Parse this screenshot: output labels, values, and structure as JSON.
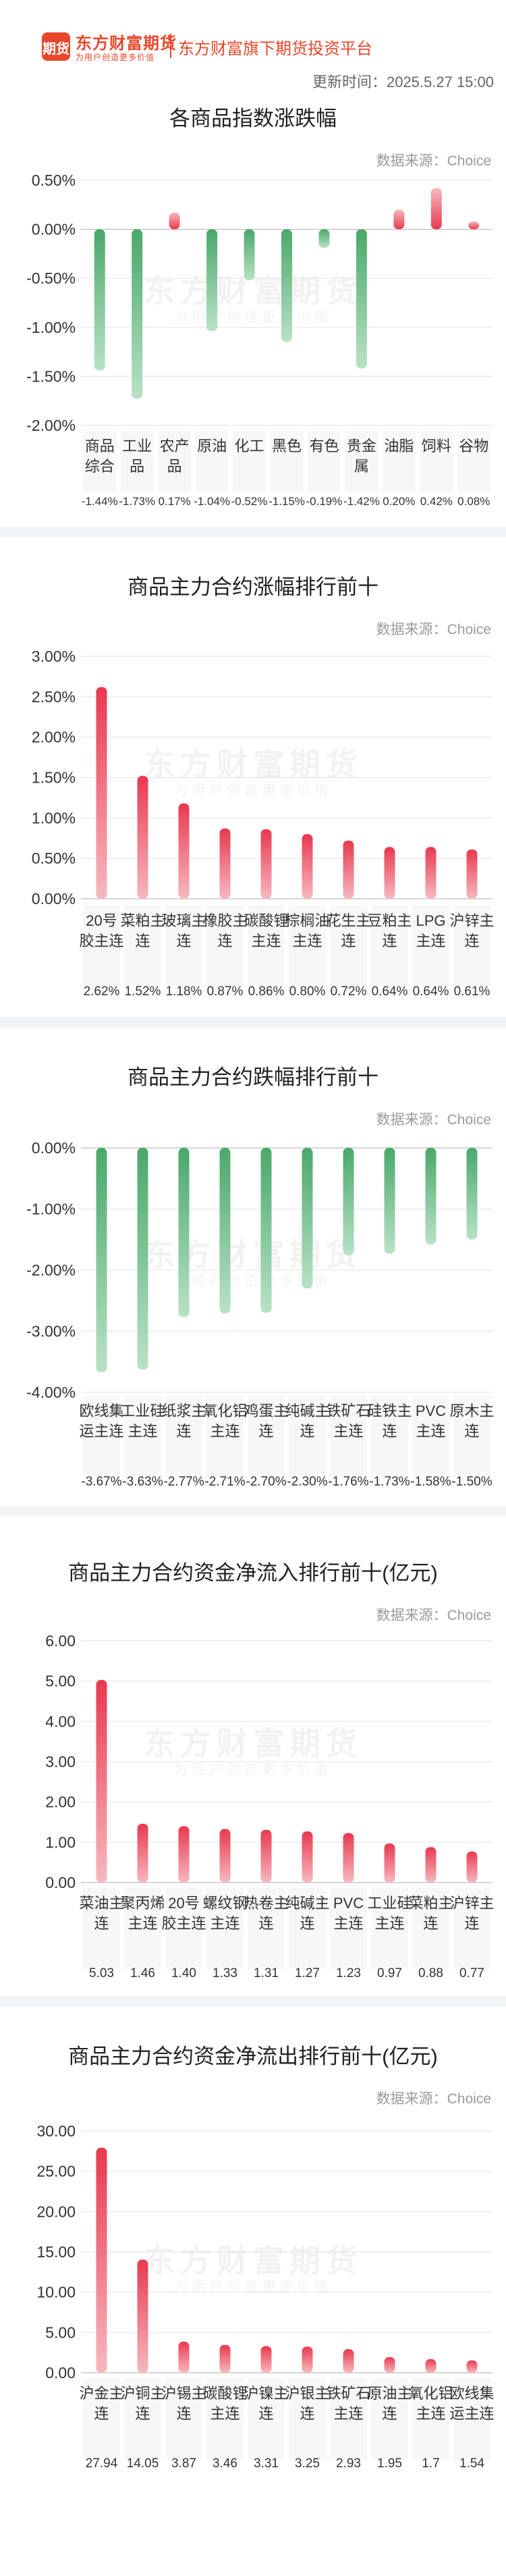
{
  "header": {
    "logo_glyph": "期货",
    "brand": "东方财富期货",
    "brand_sub": "为用户创造更多价值",
    "platform": "东方财富旗下期货投资平台",
    "update_time": "更新时间：2025.5.27 15:00"
  },
  "source_text": "数据来源：Choice",
  "watermark": {
    "main": "东方财富期货",
    "sub": "为用户创造更多价值"
  },
  "colors": {
    "rise": "#e8394f",
    "fall": "#45a86a",
    "grid": "#e6e6e6",
    "label_bg": "#f7f7f7"
  },
  "charts": [
    {
      "title": "各商品指数涨跌幅",
      "unit": "%",
      "decimals": 2,
      "ylim": [
        -2.0,
        0.5
      ],
      "ticks": [
        0.5,
        0.0,
        -0.5,
        -1.0,
        -1.5,
        -2.0
      ],
      "categories": [
        "商品综合",
        "工业品",
        "农产品",
        "原油",
        "化工",
        "黑色",
        "有色",
        "贵金属",
        "油脂",
        "饲料",
        "谷物"
      ],
      "values": [
        -1.44,
        -1.73,
        0.17,
        -1.04,
        -0.52,
        -1.15,
        -0.19,
        -1.42,
        0.2,
        0.42,
        0.08
      ],
      "value_labels": [
        "-1.44%",
        "-1.73%",
        "0.17%",
        "-1.04%",
        "-0.52%",
        "-1.15%",
        "-0.19%",
        "-1.42%",
        "0.20%",
        "0.42%",
        "0.08%"
      ]
    },
    {
      "title": "商品主力合约涨幅排行前十",
      "unit": "%",
      "decimals": 2,
      "ylim": [
        0,
        3.0
      ],
      "ticks": [
        3.0,
        2.5,
        2.0,
        1.5,
        1.0,
        0.5,
        0.0
      ],
      "categories": [
        "20号胶主连",
        "菜粕主连",
        "玻璃主连",
        "橡胶主连",
        "碳酸锂主连",
        "棕榈油主连",
        "花生主连",
        "豆粕主连",
        "LPG主连",
        "沪锌主连"
      ],
      "values": [
        2.62,
        1.52,
        1.18,
        0.87,
        0.86,
        0.8,
        0.72,
        0.64,
        0.64,
        0.61
      ],
      "value_labels": [
        "2.62%",
        "1.52%",
        "1.18%",
        "0.87%",
        "0.86%",
        "0.80%",
        "0.72%",
        "0.64%",
        "0.64%",
        "0.61%"
      ]
    },
    {
      "title": "商品主力合约跌幅排行前十",
      "unit": "%",
      "decimals": 2,
      "ylim": [
        -4.0,
        0
      ],
      "ticks": [
        0.0,
        -1.0,
        -2.0,
        -3.0,
        -4.0
      ],
      "categories": [
        "欧线集运主连",
        "工业硅主连",
        "纸浆主连",
        "氧化铝主连",
        "鸡蛋主连",
        "纯碱主连",
        "铁矿石主连",
        "硅铁主连",
        "PVC主连",
        "原木主连"
      ],
      "values": [
        -3.67,
        -3.63,
        -2.77,
        -2.71,
        -2.7,
        -2.3,
        -1.76,
        -1.73,
        -1.58,
        -1.5
      ],
      "value_labels": [
        "-3.67%",
        "-3.63%",
        "-2.77%",
        "-2.71%",
        "-2.70%",
        "-2.30%",
        "-1.76%",
        "-1.73%",
        "-1.58%",
        "-1.50%"
      ]
    },
    {
      "title": "商品主力合约资金净流入排行前十(亿元)",
      "unit": "",
      "decimals": 2,
      "ylim": [
        0,
        6.0
      ],
      "ticks": [
        6.0,
        5.0,
        4.0,
        3.0,
        2.0,
        1.0,
        0.0
      ],
      "categories": [
        "菜油主连",
        "聚丙烯主连",
        "20号胶主连",
        "螺纹钢主连",
        "热卷主连",
        "纯碱主连",
        "PVC主连",
        "工业硅主连",
        "菜粕主连",
        "沪锌主连"
      ],
      "values": [
        5.03,
        1.46,
        1.4,
        1.33,
        1.31,
        1.27,
        1.23,
        0.97,
        0.88,
        0.77
      ],
      "value_labels": [
        "5.03",
        "1.46",
        "1.40",
        "1.33",
        "1.31",
        "1.27",
        "1.23",
        "0.97",
        "0.88",
        "0.77"
      ]
    },
    {
      "title": "商品主力合约资金净流出排行前十(亿元)",
      "unit": "",
      "decimals": 2,
      "ylim": [
        0,
        30.0
      ],
      "ticks": [
        30.0,
        25.0,
        20.0,
        15.0,
        10.0,
        5.0,
        0.0
      ],
      "categories": [
        "沪金主连",
        "沪铜主连",
        "沪锡主连",
        "碳酸锂主连",
        "沪镍主连",
        "沪银主连",
        "铁矿石主连",
        "原油主连",
        "氧化铝主连",
        "欧线集运主连"
      ],
      "values": [
        27.94,
        14.05,
        3.87,
        3.46,
        3.31,
        3.25,
        2.93,
        1.95,
        1.7,
        1.54
      ],
      "value_labels": [
        "27.94",
        "14.05",
        "3.87",
        "3.46",
        "3.31",
        "3.25",
        "2.93",
        "1.95",
        "1.7",
        "1.54"
      ]
    }
  ],
  "chart_data": [
    {
      "type": "bar",
      "title": "各商品指数涨跌幅",
      "categories": [
        "商品综合",
        "工业品",
        "农产品",
        "原油",
        "化工",
        "黑色",
        "有色",
        "贵金属",
        "油脂",
        "饲料",
        "谷物"
      ],
      "values": [
        -1.44,
        -1.73,
        0.17,
        -1.04,
        -0.52,
        -1.15,
        -0.19,
        -1.42,
        0.2,
        0.42,
        0.08
      ],
      "ylim": [
        -2.0,
        0.5
      ]
    },
    {
      "type": "bar",
      "title": "商品主力合约涨幅排行前十",
      "categories": [
        "20号胶主连",
        "菜粕主连",
        "玻璃主连",
        "橡胶主连",
        "碳酸锂主连",
        "棕榈油主连",
        "花生主连",
        "豆粕主连",
        "LPG主连",
        "沪锌主连"
      ],
      "values": [
        2.62,
        1.52,
        1.18,
        0.87,
        0.86,
        0.8,
        0.72,
        0.64,
        0.64,
        0.61
      ],
      "ylim": [
        0,
        3.0
      ]
    },
    {
      "type": "bar",
      "title": "商品主力合约跌幅排行前十",
      "categories": [
        "欧线集运主连",
        "工业硅主连",
        "纸浆主连",
        "氧化铝主连",
        "鸡蛋主连",
        "纯碱主连",
        "铁矿石主连",
        "硅铁主连",
        "PVC主连",
        "原木主连"
      ],
      "values": [
        -3.67,
        -3.63,
        -2.77,
        -2.71,
        -2.7,
        -2.3,
        -1.76,
        -1.73,
        -1.58,
        -1.5
      ],
      "ylim": [
        -4.0,
        0
      ]
    },
    {
      "type": "bar",
      "title": "商品主力合约资金净流入排行前十(亿元)",
      "categories": [
        "菜油主连",
        "聚丙烯主连",
        "20号胶主连",
        "螺纹钢主连",
        "热卷主连",
        "纯碱主连",
        "PVC主连",
        "工业硅主连",
        "菜粕主连",
        "沪锌主连"
      ],
      "values": [
        5.03,
        1.46,
        1.4,
        1.33,
        1.31,
        1.27,
        1.23,
        0.97,
        0.88,
        0.77
      ],
      "ylim": [
        0,
        6.0
      ]
    },
    {
      "type": "bar",
      "title": "商品主力合约资金净流出排行前十(亿元)",
      "categories": [
        "沪金主连",
        "沪铜主连",
        "沪锡主连",
        "碳酸锂主连",
        "沪镍主连",
        "沪银主连",
        "铁矿石主连",
        "原油主连",
        "氧化铝主连",
        "欧线集运主连"
      ],
      "values": [
        27.94,
        14.05,
        3.87,
        3.46,
        3.31,
        3.25,
        2.93,
        1.95,
        1.7,
        1.54
      ],
      "ylim": [
        0,
        30.0
      ]
    }
  ]
}
